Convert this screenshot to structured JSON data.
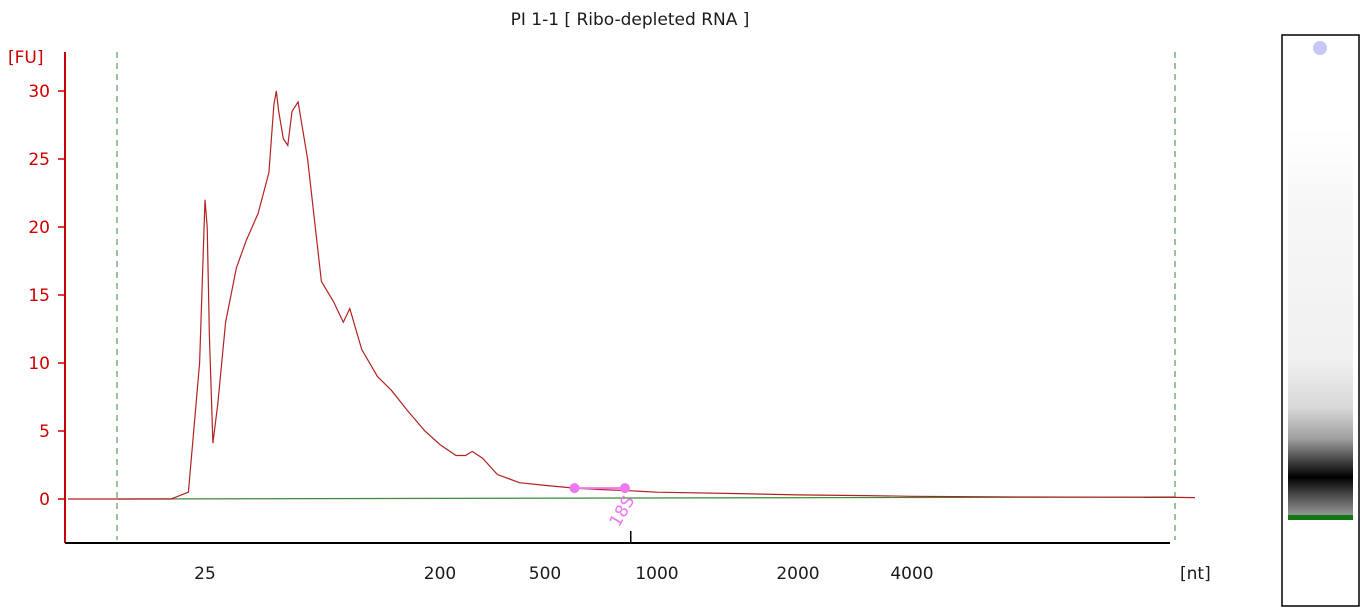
{
  "chart_data": {
    "type": "line",
    "title": "PI 1-1  [ Ribo-depleted RNA ]",
    "xlabel": "[nt]",
    "ylabel": "[FU]",
    "x_scale": "log",
    "ylim": [
      -3,
      33
    ],
    "y_ticks": [
      0,
      5,
      10,
      15,
      20,
      25,
      30
    ],
    "x_ticks": [
      25,
      200,
      500,
      1000,
      2000,
      4000
    ],
    "series": [
      {
        "color": "#b22222",
        "x": [
          10,
          18,
          20,
          22,
          23.5,
          24.5,
          25,
          25.5,
          26,
          26.8,
          28,
          30,
          33,
          36,
          40,
          44,
          46,
          47,
          48,
          50,
          52,
          54,
          57,
          62,
          70,
          78,
          85,
          90,
          100,
          115,
          130,
          150,
          175,
          200,
          230,
          250,
          265,
          290,
          330,
          400,
          500,
          600,
          700,
          850,
          1000,
          1500,
          2000,
          3000,
          4000,
          6000,
          10000,
          15000
        ],
        "values": [
          0,
          0,
          0,
          0,
          0.5,
          10,
          22,
          20,
          12,
          4.1,
          7,
          13,
          17,
          19,
          21,
          24,
          29,
          30,
          28.5,
          26.5,
          26,
          28.5,
          29.2,
          25,
          16,
          14.5,
          13,
          14,
          11,
          9,
          8,
          6.5,
          5,
          4,
          3.2,
          3.2,
          3.5,
          3,
          1.8,
          1.2,
          1,
          0.8,
          0.7,
          0.6,
          0.5,
          0.4,
          0.3,
          0.25,
          0.2,
          0.15,
          0.12,
          0.1
        ]
      },
      {
        "color": "#3a8a3a",
        "x": [
          18,
          10000
        ],
        "values": [
          0,
          0.15
        ]
      }
    ],
    "markers": [
      {
        "label": "18S",
        "x": 850,
        "start": 600,
        "end": 820,
        "y": 0.8,
        "color": "#ee77ee"
      }
    ],
    "dashed_lines": [
      18,
      10000
    ]
  },
  "gel": {
    "bands_color": "#000000",
    "marker_color": "#117711",
    "dot_color": "#c8c8f8"
  }
}
